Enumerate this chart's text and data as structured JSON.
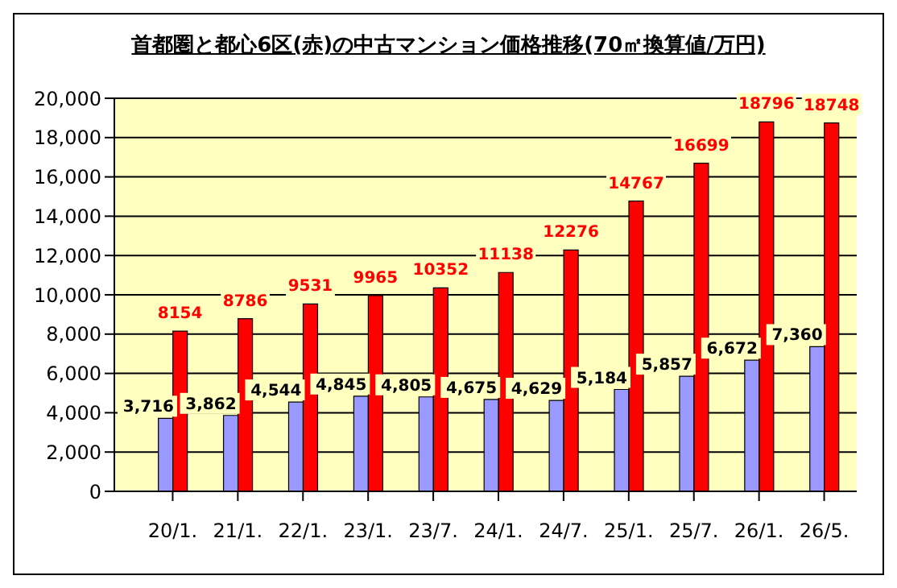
{
  "chart_data": {
    "type": "bar",
    "title": "首都圏と都心6区(赤)の中古マンション価格推移(70㎡換算値/万円)",
    "categories": [
      "20/1.",
      "21/1.",
      "22/1.",
      "23/1.",
      "23/7.",
      "24/1.",
      "24/7.",
      "25/1.",
      "25/7.",
      "26/1.",
      "26/5."
    ],
    "series": [
      {
        "color": "#9999ff",
        "values": [
          3716,
          3862,
          4544,
          4845,
          4805,
          4675,
          4629,
          5184,
          5857,
          6672,
          7360
        ],
        "value_labels": [
          "3,716",
          "3,862",
          "4,544",
          "4,845",
          "4,805",
          "4,675",
          "4,629",
          "5,184",
          "5,857",
          "6,672",
          "7,360"
        ]
      },
      {
        "color": "#ff0000",
        "values": [
          8154,
          8786,
          9531,
          9965,
          10352,
          11138,
          12276,
          14767,
          16699,
          18796,
          18748
        ],
        "value_labels": [
          "8154",
          "8786",
          "9531",
          "9965",
          "10352",
          "11138",
          "12276",
          "14767",
          "16699",
          "18796",
          "18748"
        ]
      }
    ],
    "ylim": [
      0,
      20000
    ],
    "yticks": [
      {
        "value": 0,
        "label": "0"
      },
      {
        "value": 2000,
        "label": "2,000"
      },
      {
        "value": 4000,
        "label": "4,000"
      },
      {
        "value": 6000,
        "label": "6,000"
      },
      {
        "value": 8000,
        "label": "8,000"
      },
      {
        "value": 10000,
        "label": "10,000"
      },
      {
        "value": 12000,
        "label": "12,000"
      },
      {
        "value": 14000,
        "label": "14,000"
      },
      {
        "value": 16000,
        "label": "16,000"
      },
      {
        "value": 18000,
        "label": "18,000"
      },
      {
        "value": 20000,
        "label": "20,000"
      }
    ],
    "grid": "y",
    "legend": false
  }
}
